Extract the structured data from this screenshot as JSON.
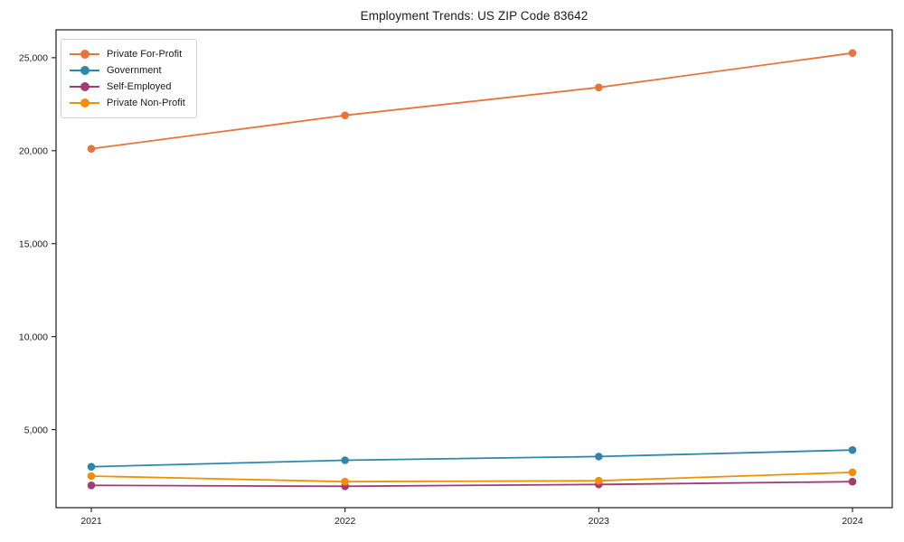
{
  "chart_data": {
    "type": "line",
    "title": "Employment Trends: US ZIP Code 83642",
    "categories": [
      "2021",
      "2022",
      "2023",
      "2024"
    ],
    "series": [
      {
        "name": "Private For-Profit",
        "color": "#E8743B",
        "values": [
          20100,
          21900,
          23400,
          25250
        ]
      },
      {
        "name": "Government",
        "color": "#2E86AB",
        "values": [
          3000,
          3350,
          3550,
          3900
        ]
      },
      {
        "name": "Self-Employed",
        "color": "#A23B72",
        "values": [
          2000,
          1950,
          2050,
          2200
        ]
      },
      {
        "name": "Private Non-Profit",
        "color": "#F18F01",
        "values": [
          2500,
          2200,
          2250,
          2700
        ]
      }
    ],
    "xlabel": "",
    "ylabel": "",
    "ylim": [
      800,
      26500
    ],
    "yticks": [
      5000,
      10000,
      15000,
      20000,
      25000
    ],
    "ytick_labels": [
      "5,000",
      "10,000",
      "15,000",
      "20,000",
      "25,000"
    ],
    "grid": false,
    "legend_position": "upper-left",
    "axis_color": "#1a1a1a"
  }
}
